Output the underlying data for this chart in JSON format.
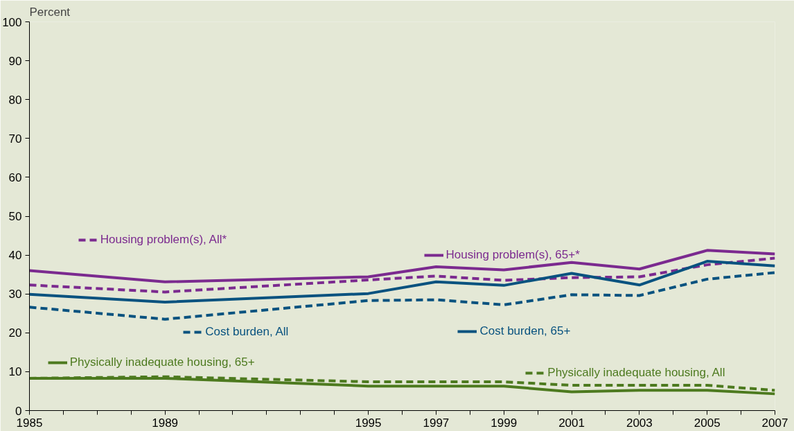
{
  "chart_data": {
    "type": "line",
    "ylabel": "Percent",
    "x": [
      1985,
      1989,
      1995,
      1997,
      1999,
      2001,
      2003,
      2005,
      2007
    ],
    "xlim": [
      1985,
      2007
    ],
    "ylim": [
      0,
      100
    ],
    "yticks": [
      0,
      10,
      20,
      30,
      40,
      50,
      60,
      70,
      80,
      90,
      100
    ],
    "xticks": [
      1985,
      {
        "value": 1986,
        "label": null
      },
      {
        "value": 1987,
        "label": null
      },
      {
        "value": 1988,
        "label": null
      },
      1989,
      {
        "value": 1990,
        "label": null
      },
      {
        "value": 1991,
        "label": null
      },
      {
        "value": 1992,
        "label": null
      },
      {
        "value": 1993,
        "label": null
      },
      {
        "value": 1994,
        "label": null
      },
      1995,
      {
        "value": 1996,
        "label": null
      },
      1997,
      {
        "value": 1998,
        "label": null
      },
      1999,
      {
        "value": 2000,
        "label": null
      },
      2001,
      {
        "value": 2002,
        "label": null
      },
      2003,
      {
        "value": 2004,
        "label": null
      },
      2005,
      {
        "value": 2006,
        "label": null
      },
      2007
    ],
    "grid": false,
    "legend": "center",
    "marker": "none",
    "series": [
      {
        "name": "Housing problem(s), 65+*",
        "color": "#7b2a8f",
        "line_style": "solid",
        "values": [
          36.0,
          33.1,
          34.4,
          37.0,
          36.2,
          38.1,
          36.4,
          41.2,
          40.3
        ]
      },
      {
        "name": "Housing problem(s), All*",
        "color": "#7b2a8f",
        "line_style": "dashed",
        "values": [
          32.3,
          30.5,
          33.6,
          34.6,
          33.5,
          34.2,
          34.4,
          37.5,
          39.2
        ]
      },
      {
        "name": "Cost burden, 65+",
        "color": "#08527f",
        "line_style": "solid",
        "values": [
          29.9,
          27.9,
          30.1,
          33.1,
          32.2,
          35.3,
          32.3,
          38.4,
          37.2
        ]
      },
      {
        "name": "Cost burden, All",
        "color": "#08527f",
        "line_style": "dashed",
        "values": [
          26.6,
          23.5,
          28.3,
          28.5,
          27.2,
          29.8,
          29.6,
          33.8,
          35.5
        ]
      },
      {
        "name": "Physically inadequate housing, 65+",
        "color": "#4d7a1f",
        "line_style": "solid",
        "values": [
          8.3,
          8.3,
          6.3,
          6.3,
          6.3,
          4.8,
          5.2,
          5.2,
          4.3
        ]
      },
      {
        "name": "Physically inadequate housing, All",
        "color": "#4d7a1f",
        "line_style": "dashed",
        "values": [
          8.3,
          8.7,
          7.4,
          7.4,
          7.4,
          6.5,
          6.5,
          6.5,
          5.2
        ]
      }
    ]
  }
}
